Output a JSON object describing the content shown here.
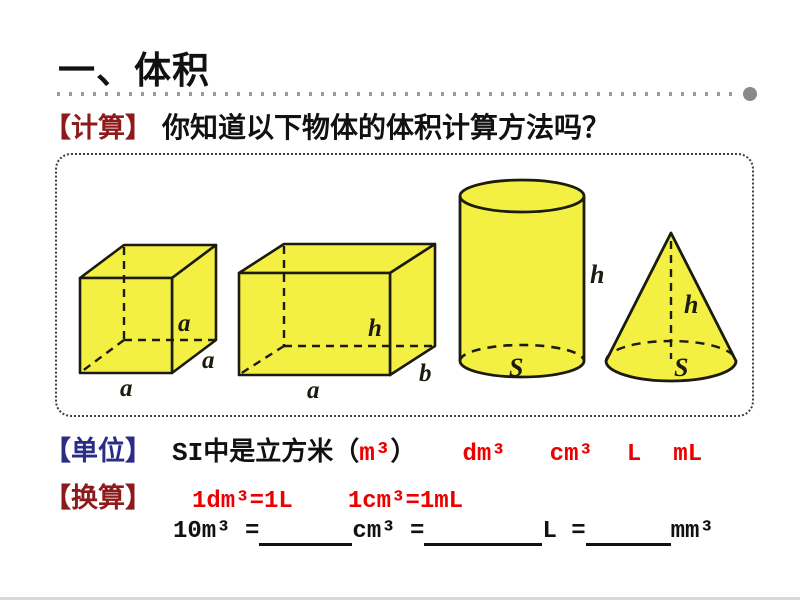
{
  "title": "一、体积",
  "calc": {
    "tag": "【计算】",
    "question": "你知道以下物体的体积计算方法吗？"
  },
  "shapes": {
    "cube": {
      "edge_label": "a"
    },
    "cuboid": {
      "length_label": "a",
      "width_label": "b",
      "height_label": "h"
    },
    "cylinder": {
      "height_label": "h",
      "base_area_label": "S"
    },
    "cone": {
      "height_label": "h",
      "base_area_label": "S"
    }
  },
  "unit": {
    "tag": "【单位】",
    "si_prefix": "SI中是立方米（",
    "si_unit": "m³",
    "si_suffix": "）",
    "other_units": [
      "dm³",
      "cm³",
      "L",
      "mL"
    ]
  },
  "conversion": {
    "tag": "【换算】",
    "eq1": "1dm³=1L",
    "eq2": "1cm³=1mL"
  },
  "fill": {
    "segments": [
      {
        "text": "10m³ ="
      },
      {
        "blank": 93
      },
      {
        "text": "cm³ ="
      },
      {
        "blank": 118
      },
      {
        "text": "L ="
      },
      {
        "blank": 85
      },
      {
        "text": "mm³"
      }
    ]
  },
  "colors": {
    "accent_dark_red": "#8e1b1b",
    "accent_blue": "#2a2c86",
    "highlight_red": "#ec0000",
    "shape_fill_yellow": "#f4f043",
    "shape_outline": "#1b1b10"
  }
}
